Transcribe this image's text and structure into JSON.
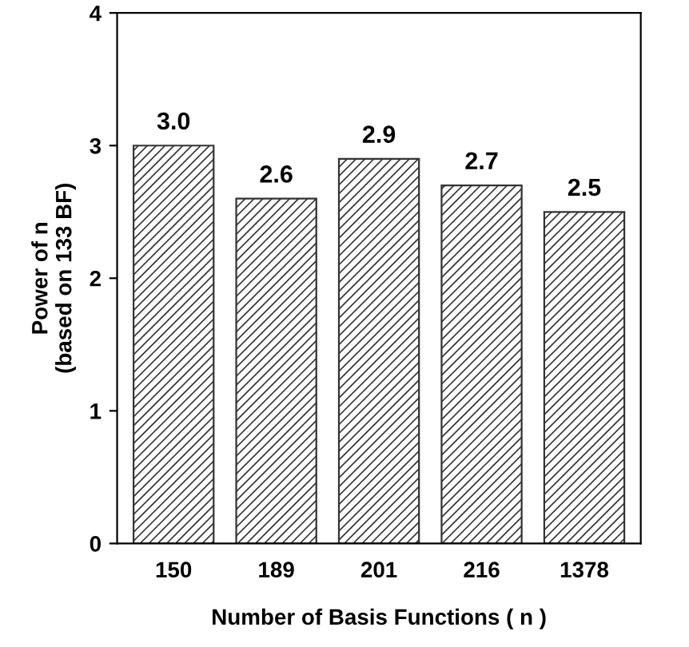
{
  "chart_data": {
    "type": "bar",
    "xlabel": "Number of Basis Functions ( n )",
    "ylabel": "Power of n\n(based on 133 BF)",
    "categories": [
      "150",
      "189",
      "201",
      "216",
      "1378"
    ],
    "values": [
      3.0,
      2.6,
      2.9,
      2.7,
      2.5
    ],
    "value_labels": [
      "3.0",
      "2.6",
      "2.9",
      "2.7",
      "2.5"
    ],
    "color": "#333333",
    "ylim": [
      0,
      4
    ],
    "yticks": [
      0,
      1,
      2,
      3,
      4
    ],
    "grid": false
  }
}
